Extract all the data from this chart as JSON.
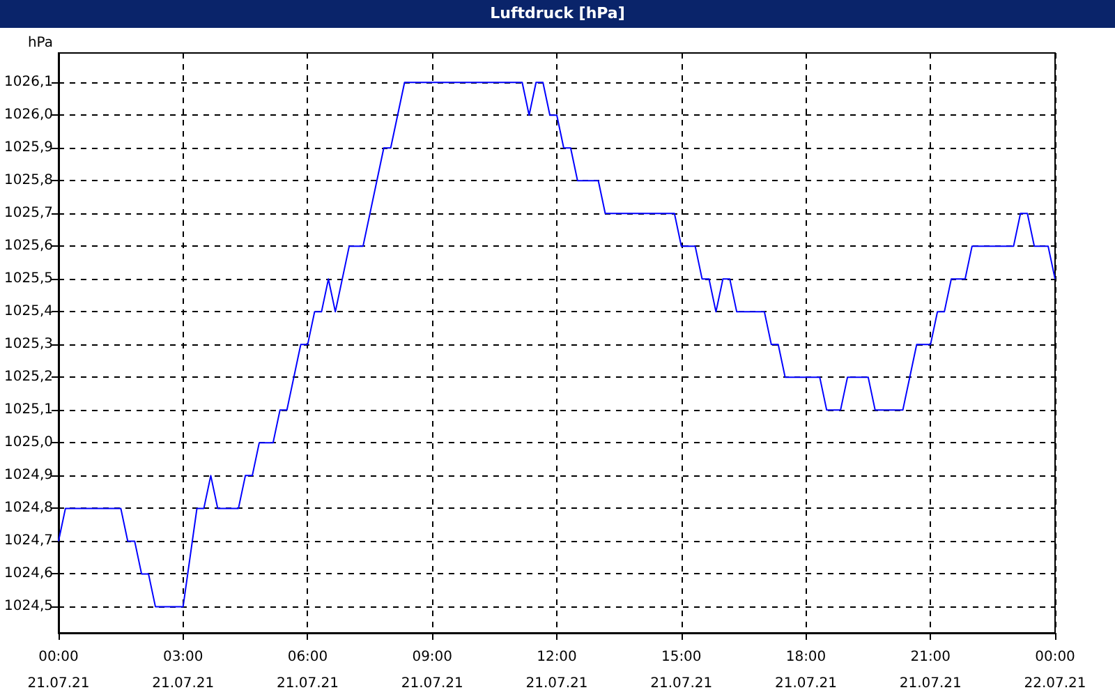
{
  "chart_data": {
    "type": "line",
    "title": "Luftdruck [hPa]",
    "ylabel": "hPa",
    "x": [
      "--07-21T00:00",
      "--07-21T00:10",
      "--07-21T01:30",
      "--07-21T01:40",
      "--07-21T01:50",
      "--07-21T02:00",
      "--07-21T02:10",
      "--07-21T02:20",
      "--07-21T03:00",
      "--07-21T03:20",
      "--07-21T03:30",
      "--07-21T03:40",
      "--07-21T03:50",
      "--07-21T04:20",
      "--07-21T04:30",
      "--07-21T04:40",
      "--07-21T04:50",
      "--07-21T05:10",
      "--07-21T05:20",
      "--07-21T05:30",
      "--07-21T05:50",
      "--07-21T06:00",
      "--07-21T06:10",
      "--07-21T06:20",
      "--07-21T06:30",
      "--07-21T06:40",
      "--07-21T07:00",
      "--07-21T07:20",
      "--07-21T07:50",
      "--07-21T08:00",
      "--07-21T08:20",
      "--07-21T11:10",
      "--07-21T11:20",
      "--07-21T11:30",
      "--07-21T11:40",
      "--07-21T11:50",
      "--07-21T12:00",
      "--07-21T12:10",
      "--07-21T12:20",
      "--07-21T12:30",
      "--07-21T13:00",
      "--07-21T13:10",
      "--07-21T14:50",
      "--07-21T15:00",
      "--07-21T15:20",
      "--07-21T15:30",
      "--07-21T15:40",
      "--07-21T15:50",
      "--07-21T16:00",
      "--07-21T16:10",
      "--07-21T16:20",
      "--07-21T17:00",
      "--07-21T17:10",
      "--07-21T17:20",
      "--07-21T17:30",
      "--07-21T18:20",
      "--07-21T18:30",
      "--07-21T18:50",
      "--07-21T19:00",
      "--07-21T19:30",
      "--07-21T19:40",
      "--07-21T20:20",
      "--07-21T20:40",
      "--07-21T21:00",
      "--07-21T21:10",
      "--07-21T21:20",
      "--07-21T21:30",
      "--07-21T21:50",
      "--07-21T22:00",
      "--07-21T23:00",
      "--07-21T23:10",
      "--07-21T23:20",
      "--07-21T23:30",
      "--07-21T23:50",
      "--07-22T00:00"
    ],
    "series": [
      {
        "color": "#0000ff",
        "values": [
          1024.7,
          1024.8,
          1024.8,
          1024.7,
          1024.7,
          1024.6,
          1024.6,
          1024.5,
          1024.5,
          1024.8,
          1024.8,
          1024.9,
          1024.8,
          1024.8,
          1024.9,
          1024.9,
          1025.0,
          1025.0,
          1025.1,
          1025.1,
          1025.3,
          1025.3,
          1025.4,
          1025.4,
          1025.5,
          1025.4,
          1025.6,
          1025.6,
          1025.9,
          1025.9,
          1026.1,
          1026.1,
          1026.0,
          1026.1,
          1026.1,
          1026.0,
          1026.0,
          1025.9,
          1025.9,
          1025.8,
          1025.8,
          1025.7,
          1025.7,
          1025.6,
          1025.6,
          1025.5,
          1025.5,
          1025.4,
          1025.5,
          1025.5,
          1025.4,
          1025.4,
          1025.3,
          1025.3,
          1025.2,
          1025.2,
          1025.1,
          1025.1,
          1025.2,
          1025.2,
          1025.1,
          1025.1,
          1025.3,
          1025.3,
          1025.4,
          1025.4,
          1025.5,
          1025.5,
          1025.6,
          1025.6,
          1025.7,
          1025.7,
          1025.6,
          1025.6,
          1025.5
        ]
      }
    ],
    "xlim": [
      "--07-21T00:00",
      "--07-22T00:00"
    ],
    "xticks": [
      {
        "value": "--07-21T00:00",
        "label": "00:00\n21.07.21"
      },
      {
        "value": "--07-21T03:00",
        "label": "03:00\n21.07.21"
      },
      {
        "value": "--07-21T06:00",
        "label": "06:00\n21.07.21"
      },
      {
        "value": "--07-21T09:00",
        "label": "09:00\n21.07.21"
      },
      {
        "value": "--07-21T12:00",
        "label": "12:00\n21.07.21"
      },
      {
        "value": "--07-21T15:00",
        "label": "15:00\n21.07.21"
      },
      {
        "value": "--07-21T18:00",
        "label": "18:00\n21.07.21"
      },
      {
        "value": "--07-21T21:00",
        "label": "21:00\n21.07.21"
      },
      {
        "value": "--07-22T00:00",
        "label": "00:00\n22.07.21"
      }
    ],
    "ylim": [
      1024.42,
      1026.19
    ],
    "yticks": [
      {
        "value": 1024.5,
        "label": "1024,5"
      },
      {
        "value": 1024.6,
        "label": "1024,6"
      },
      {
        "value": 1024.7,
        "label": "1024,7"
      },
      {
        "value": 1024.8,
        "label": "1024,8"
      },
      {
        "value": 1024.9,
        "label": "1024,9"
      },
      {
        "value": 1025.0,
        "label": "1025,0"
      },
      {
        "value": 1025.1,
        "label": "1025,1"
      },
      {
        "value": 1025.2,
        "label": "1025,2"
      },
      {
        "value": 1025.3,
        "label": "1025,3"
      },
      {
        "value": 1025.4,
        "label": "1025,4"
      },
      {
        "value": 1025.5,
        "label": "1025,5"
      },
      {
        "value": 1025.6,
        "label": "1025,6"
      },
      {
        "value": 1025.7,
        "label": "1025,7"
      },
      {
        "value": 1025.8,
        "label": "1025,8"
      },
      {
        "value": 1025.9,
        "label": "1025,9"
      },
      {
        "value": 1026.0,
        "label": "1026,0"
      },
      {
        "value": 1026.1,
        "label": "1026,1"
      }
    ],
    "grid": true,
    "marker": "none",
    "line_style": "solid"
  }
}
